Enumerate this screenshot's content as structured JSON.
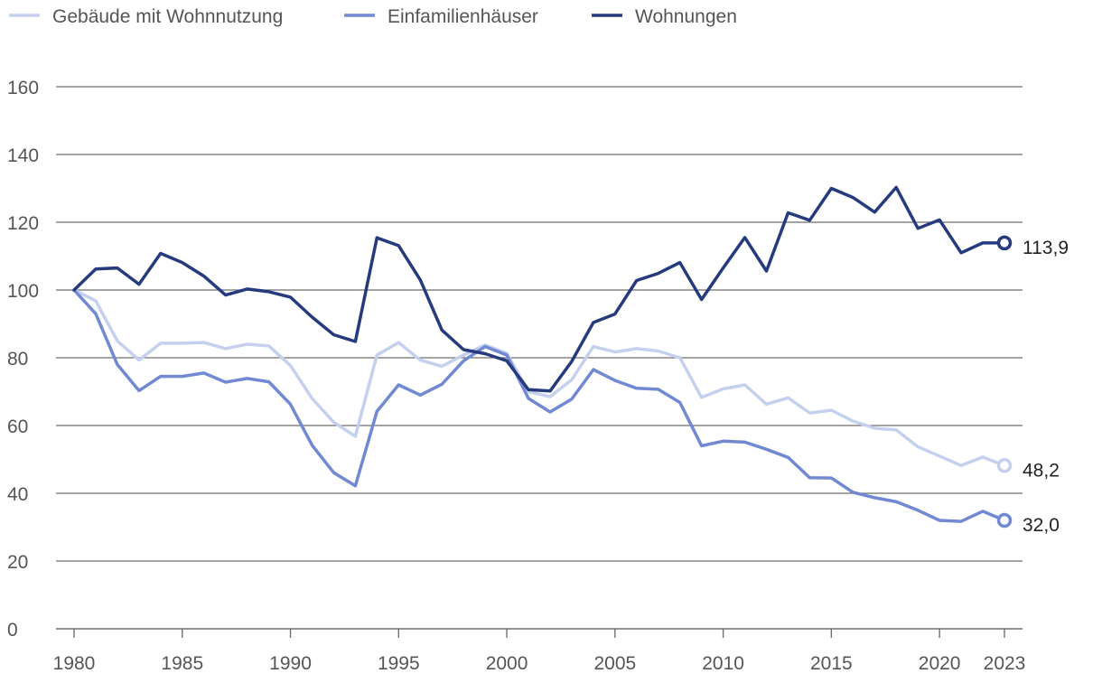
{
  "chart_data": {
    "type": "line",
    "x": [
      1980,
      1981,
      1982,
      1983,
      1984,
      1985,
      1986,
      1987,
      1988,
      1989,
      1990,
      1991,
      1992,
      1993,
      1994,
      1995,
      1996,
      1997,
      1998,
      1999,
      2000,
      2001,
      2002,
      2003,
      2004,
      2005,
      2006,
      2007,
      2008,
      2009,
      2010,
      2011,
      2012,
      2013,
      2014,
      2015,
      2016,
      2017,
      2018,
      2019,
      2020,
      2021,
      2022,
      2023
    ],
    "xticks": [
      "1980",
      "1985",
      "1990",
      "1995",
      "2000",
      "2005",
      "2010",
      "2015",
      "2020",
      "2023"
    ],
    "ylim": [
      0,
      160
    ],
    "yticks": [
      0,
      20,
      40,
      60,
      80,
      100,
      120,
      140,
      160
    ],
    "grid": true,
    "legend_position": "top-left",
    "series": [
      {
        "name": "Gebäude mit Wohnnutzung",
        "color": "#c5d0ee",
        "end_label": "48,2",
        "values": [
          100,
          96.8,
          85,
          79.3,
          84.3,
          84.3,
          84.5,
          82.7,
          84,
          83.5,
          77.7,
          68,
          61,
          56.8,
          80.8,
          84.5,
          79.3,
          77.5,
          80.8,
          83.8,
          81.3,
          70,
          68.5,
          73.5,
          83.3,
          81.7,
          82.7,
          82,
          80,
          68.3,
          70.8,
          72,
          66.3,
          68.2,
          63.7,
          64.5,
          61.3,
          59.2,
          58.7,
          53.7,
          51,
          48.2,
          50.7,
          48.2
        ]
      },
      {
        "name": "Einfamilienhäuser",
        "color": "#7189d2",
        "end_label": "32,0",
        "values": [
          100,
          93,
          78,
          70.3,
          74.5,
          74.5,
          75.5,
          72.8,
          73.9,
          72.9,
          66.3,
          54.2,
          46.1,
          42.2,
          64.2,
          72,
          69,
          72.2,
          79.1,
          83.3,
          80.8,
          68,
          64,
          67.8,
          76.5,
          73.3,
          71,
          70.7,
          66.8,
          54,
          55.4,
          55.1,
          53,
          50.6,
          44.6,
          44.5,
          40.3,
          38.7,
          37.5,
          35,
          32,
          31.7,
          34.7,
          32
        ]
      },
      {
        "name": "Wohnungen",
        "color": "#263a7e",
        "end_label": "113,9",
        "values": [
          100,
          106.2,
          106.5,
          101.7,
          110.8,
          108.1,
          104.1,
          98.5,
          100.3,
          99.5,
          97.9,
          92,
          86.8,
          84.8,
          115.4,
          113.1,
          103,
          88.2,
          82.4,
          81.2,
          79.1,
          70.6,
          70.2,
          78.9,
          90.4,
          92.9,
          102.8,
          104.9,
          108.1,
          97.2,
          106.5,
          115.5,
          105.6,
          122.8,
          120.6,
          130,
          127.3,
          123,
          130.3,
          118.2,
          120.7,
          111,
          113.9,
          113.9
        ]
      }
    ]
  }
}
